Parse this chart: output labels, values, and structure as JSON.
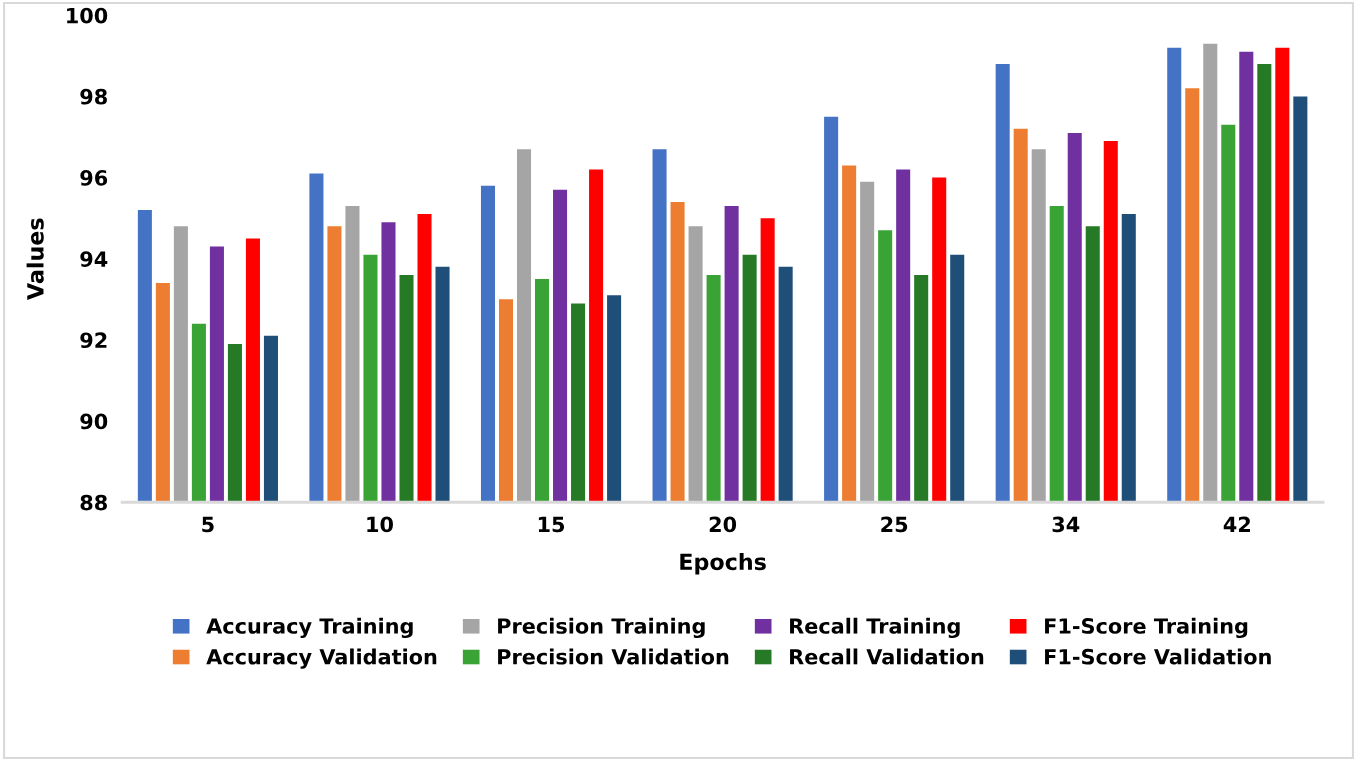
{
  "chart_data": {
    "type": "bar",
    "xlabel": "Epochs",
    "ylabel": "Values",
    "categories": [
      "5",
      "10",
      "15",
      "20",
      "25",
      "34",
      "42"
    ],
    "ylim": [
      88,
      100
    ],
    "yticks": [
      88,
      90,
      92,
      94,
      96,
      98,
      100
    ],
    "grid": false,
    "legend": "bottom",
    "series": [
      {
        "name": "Accuracy Training",
        "color": "#4472c4",
        "values": [
          95.2,
          96.1,
          95.8,
          96.7,
          97.5,
          98.8,
          99.2
        ]
      },
      {
        "name": "Accuracy Validation",
        "color": "#ed7d31",
        "values": [
          93.4,
          94.8,
          93.0,
          95.4,
          96.3,
          97.2,
          98.2
        ]
      },
      {
        "name": "Precision Training",
        "color": "#a5a5a5",
        "values": [
          94.8,
          95.3,
          96.7,
          94.8,
          95.9,
          96.7,
          99.3
        ]
      },
      {
        "name": "Precision Validation",
        "color": "#3aa335",
        "values": [
          92.4,
          94.1,
          93.5,
          93.6,
          94.7,
          95.3,
          97.3
        ]
      },
      {
        "name": "Recall Training",
        "color": "#7030a0",
        "values": [
          94.3,
          94.9,
          95.7,
          95.3,
          96.2,
          97.1,
          99.1
        ]
      },
      {
        "name": "Recall Validation",
        "color": "#267a26",
        "values": [
          91.9,
          93.6,
          92.9,
          94.1,
          93.6,
          94.8,
          98.8
        ]
      },
      {
        "name": "F1-Score Training",
        "color": "#ff0000",
        "values": [
          94.5,
          95.1,
          96.2,
          95.0,
          96.0,
          96.9,
          99.2
        ]
      },
      {
        "name": "F1-Score Validation",
        "color": "#1f4e79",
        "values": [
          92.1,
          93.8,
          93.1,
          93.8,
          94.1,
          95.1,
          98.0
        ]
      }
    ]
  }
}
